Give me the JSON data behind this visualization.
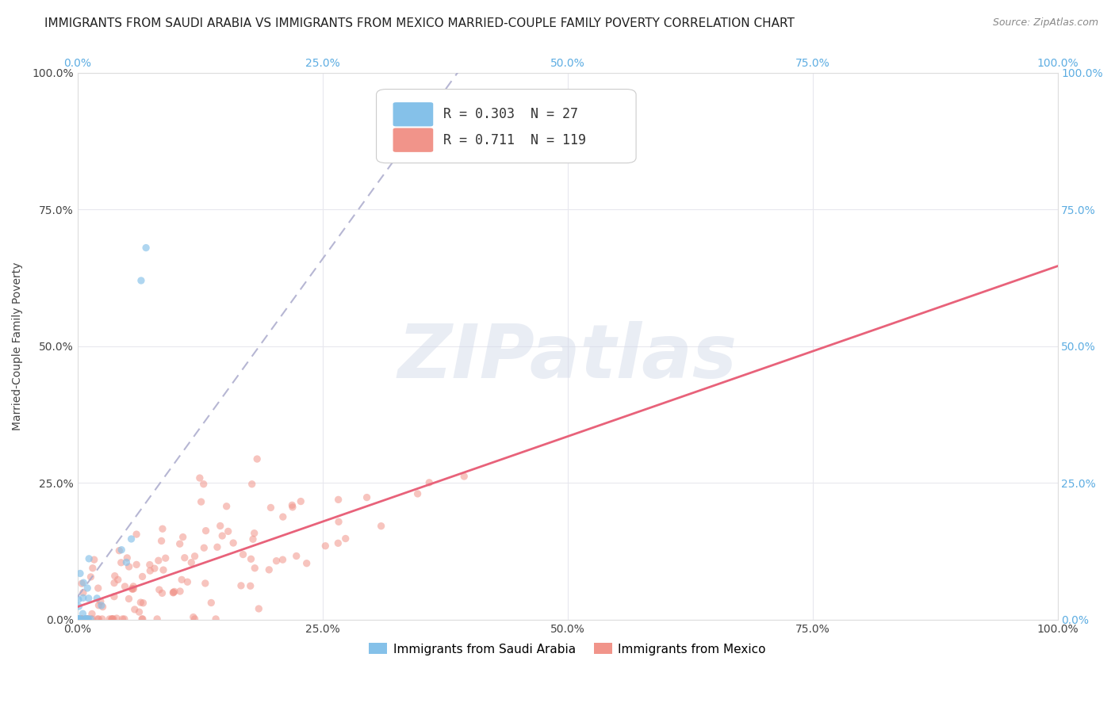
{
  "title": "IMMIGRANTS FROM SAUDI ARABIA VS IMMIGRANTS FROM MEXICO MARRIED-COUPLE FAMILY POVERTY CORRELATION CHART",
  "source": "Source: ZipAtlas.com",
  "ylabel": "Married-Couple Family Poverty",
  "xmin": 0.0,
  "xmax": 1.0,
  "ymin": 0.0,
  "ymax": 1.0,
  "xtick_labels": [
    "0.0%",
    "25.0%",
    "50.0%",
    "75.0%",
    "100.0%"
  ],
  "xtick_vals": [
    0.0,
    0.25,
    0.5,
    0.75,
    1.0
  ],
  "ytick_labels_left": [
    "0.0%",
    "25.0%",
    "50.0%",
    "75.0%",
    "100.0%"
  ],
  "ytick_labels_right": [
    "0.0%",
    "25.0%",
    "50.0%",
    "75.0%",
    "100.0%"
  ],
  "ytick_vals": [
    0.0,
    0.25,
    0.5,
    0.75,
    1.0
  ],
  "saudi_R": 0.303,
  "saudi_N": 27,
  "mexico_R": 0.711,
  "mexico_N": 119,
  "saudi_color": "#85C1E9",
  "mexico_color": "#F1948A",
  "saudi_line_color": "#AAAACC",
  "mexico_line_color": "#E8627A",
  "legend_saudi_label": "Immigrants from Saudi Arabia",
  "legend_mexico_label": "Immigrants from Mexico",
  "watermark": "ZIPatlas",
  "title_fontsize": 11,
  "axis_label_fontsize": 10,
  "tick_fontsize": 10,
  "legend_fontsize": 11,
  "right_tick_color": "#5DADE2",
  "top_tick_color": "#5DADE2"
}
